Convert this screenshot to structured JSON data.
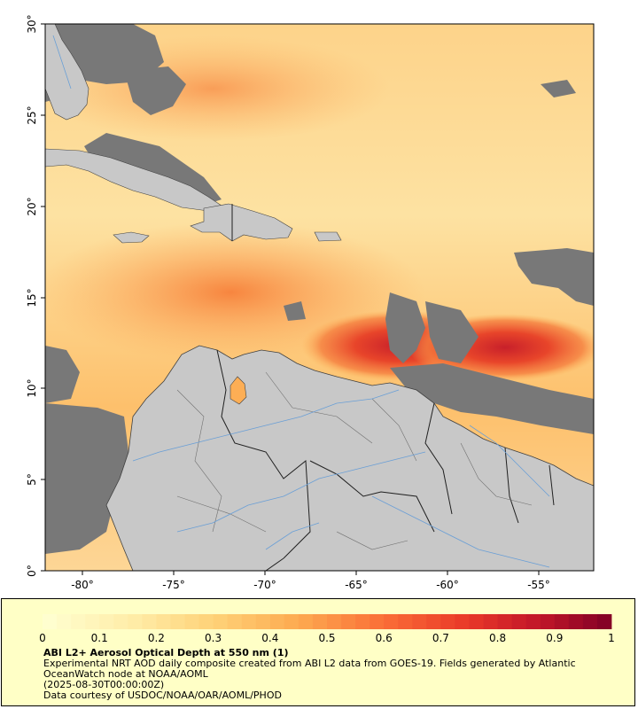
{
  "map": {
    "lat_ticks": [
      "30°",
      "25°",
      "20°",
      "15°",
      "10°",
      "5°",
      "0°"
    ],
    "lon_ticks": [
      "-80°",
      "-75°",
      "-70°",
      "-65°",
      "-60°",
      "-55°"
    ],
    "colors": {
      "land": "#c8c8c8",
      "no_data": "#787878",
      "low_aod": "#ffe8a8",
      "mid_aod": "#fdae55",
      "high_aod": "#e8452a",
      "very_high_aod": "#b0102a",
      "rivers": "#6a9fd6",
      "borders": "#303030"
    }
  },
  "colorbar": {
    "ticks": [
      "0",
      "0.1",
      "0.2",
      "0.3",
      "0.4",
      "0.5",
      "0.6",
      "0.7",
      "0.8",
      "0.9",
      "1"
    ],
    "range": [
      0,
      1
    ],
    "bins": 40
  },
  "legend": {
    "title": "ABI L2+ Aerosol Optical Depth at 550 nm (1)",
    "line1": "Experimental NRT AOD daily composite created from ABI L2 data from GOES-19. Fields generated by Atlantic",
    "line2": "OceanWatch node at NOAA/AOML",
    "line3": "(2025-08-30T00:00:00Z)",
    "line4": "Data courtesy of USDOC/NOAA/OAR/AOML/PHOD"
  }
}
